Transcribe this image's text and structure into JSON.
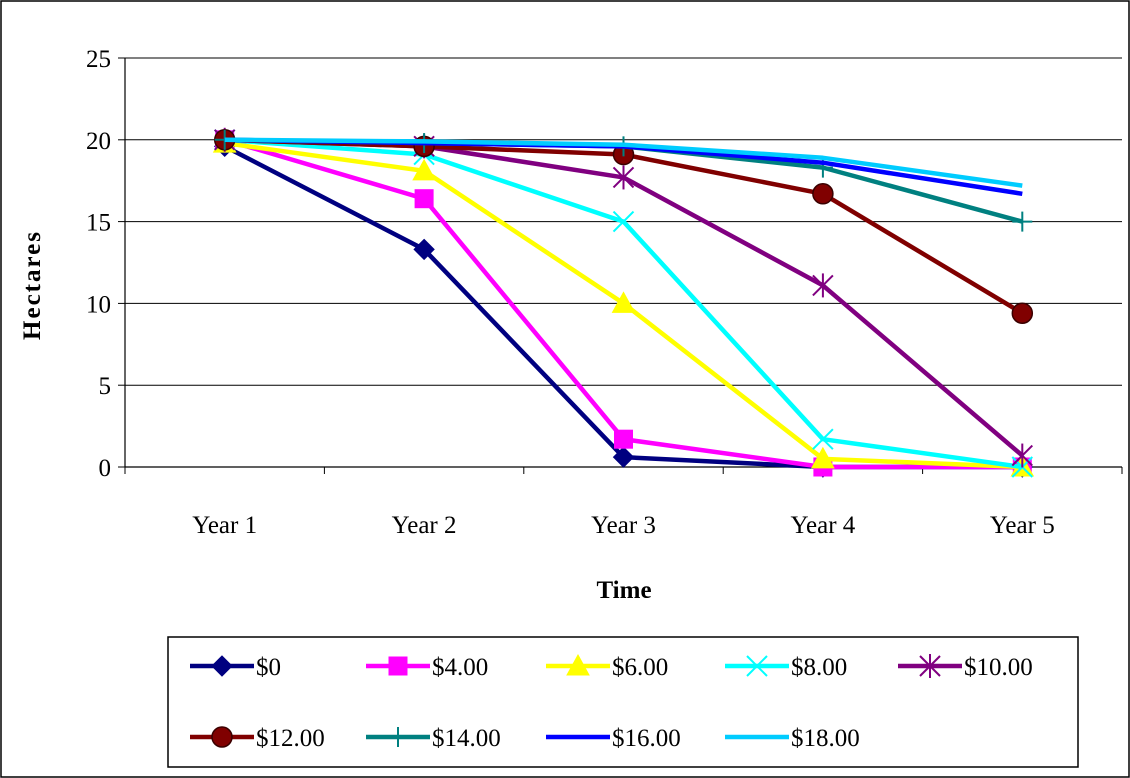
{
  "chart_data": {
    "type": "line",
    "categories": [
      "Year 1",
      "Year 2",
      "Year 3",
      "Year 4",
      "Year 5"
    ],
    "xlabel": "Time",
    "ylabel": "Hectares",
    "ylim": [
      0,
      25
    ],
    "yticks": [
      0,
      5,
      10,
      15,
      20,
      25
    ],
    "grid": "horizontal",
    "legend_position": "bottom",
    "series": [
      {
        "name": "$0",
        "color": "#000080",
        "marker": "diamond",
        "values": [
          19.6,
          13.3,
          0.6,
          0.0,
          0.0
        ]
      },
      {
        "name": "$4.00",
        "color": "#FF00FF",
        "marker": "square",
        "values": [
          20.0,
          16.4,
          1.7,
          0.0,
          0.0
        ]
      },
      {
        "name": "$6.00",
        "color": "#FFFF00",
        "marker": "triangle",
        "values": [
          19.8,
          18.1,
          10.0,
          0.5,
          0.0
        ]
      },
      {
        "name": "$8.00",
        "color": "#00FFFF",
        "marker": "x",
        "values": [
          20.0,
          19.1,
          15.0,
          1.7,
          0.0
        ]
      },
      {
        "name": "$10.00",
        "color": "#800080",
        "marker": "asterisk",
        "values": [
          20.0,
          19.6,
          17.7,
          11.1,
          0.7
        ]
      },
      {
        "name": "$12.00",
        "color": "#800000",
        "marker": "circle",
        "values": [
          20.0,
          19.6,
          19.1,
          16.7,
          9.4
        ]
      },
      {
        "name": "$14.00",
        "color": "#008080",
        "marker": "plus",
        "values": [
          20.0,
          19.8,
          19.6,
          18.3,
          15.0
        ]
      },
      {
        "name": "$16.00",
        "color": "#0000FF",
        "marker": "none",
        "values": [
          20.0,
          19.8,
          19.6,
          18.6,
          16.7
        ]
      },
      {
        "name": "$18.00",
        "color": "#00CCFF",
        "marker": "none",
        "values": [
          20.0,
          19.9,
          19.7,
          18.9,
          17.2
        ]
      }
    ]
  }
}
